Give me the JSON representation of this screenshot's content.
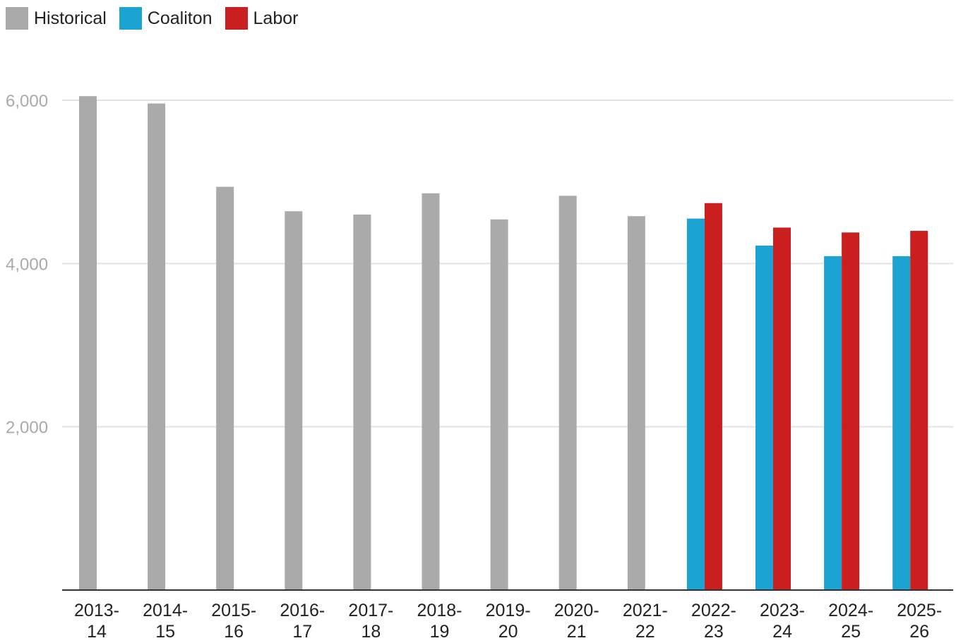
{
  "chart_data": {
    "type": "bar",
    "title": "",
    "xlabel": "",
    "ylabel": "",
    "ylim": [
      0,
      6000
    ],
    "yticks": [
      "2,000",
      "4,000",
      "6,000"
    ],
    "ytick_values": [
      2000,
      4000,
      6000
    ],
    "grid": true,
    "legend_position": "top-left",
    "categories": [
      [
        "2013-",
        "14"
      ],
      [
        "2014-",
        "15"
      ],
      [
        "2015-",
        "16"
      ],
      [
        "2016-",
        "17"
      ],
      [
        "2017-",
        "18"
      ],
      [
        "2018-",
        "19"
      ],
      [
        "2019-",
        "20"
      ],
      [
        "2020-",
        "21"
      ],
      [
        "2021-",
        "22"
      ],
      [
        "2022-",
        "23"
      ],
      [
        "2023-",
        "24"
      ],
      [
        "2024-",
        "25"
      ],
      [
        "2025-",
        "26"
      ]
    ],
    "series": [
      {
        "name": "Historical",
        "color": "#aaaaaa",
        "values": [
          6050,
          5960,
          4940,
          4640,
          4600,
          4860,
          4540,
          4830,
          4580,
          null,
          null,
          null,
          null
        ]
      },
      {
        "name": "Coaliton",
        "color": "#1ba3d1",
        "values": [
          null,
          null,
          null,
          null,
          null,
          null,
          null,
          null,
          null,
          4550,
          4220,
          4090,
          4090
        ]
      },
      {
        "name": "Labor",
        "color": "#c91f1f",
        "values": [
          null,
          null,
          null,
          null,
          null,
          null,
          null,
          null,
          null,
          4740,
          4440,
          4380,
          4400
        ]
      }
    ]
  }
}
